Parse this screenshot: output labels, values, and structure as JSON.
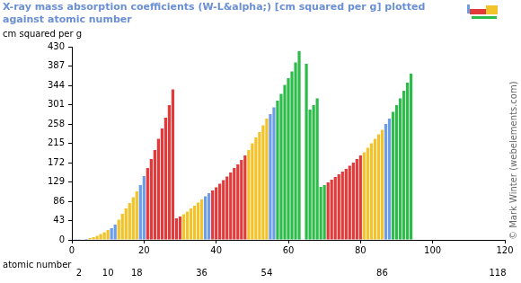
{
  "chart_data": {
    "type": "bar",
    "title": "X-ray mass absorption coefficients (W-L&alpha;) [cm squared per g] plotted against atomic number",
    "y_label": "cm squared per g",
    "x_label": "atomic number",
    "annotations": [
      "© Mark Winter (webelements.com)"
    ],
    "x": [
      1,
      2,
      3,
      4,
      5,
      6,
      7,
      8,
      9,
      10,
      11,
      12,
      13,
      14,
      15,
      16,
      17,
      18,
      19,
      20,
      21,
      22,
      23,
      24,
      25,
      26,
      27,
      28,
      29,
      30,
      31,
      32,
      33,
      34,
      35,
      36,
      37,
      38,
      39,
      40,
      41,
      42,
      43,
      44,
      45,
      46,
      47,
      48,
      49,
      50,
      51,
      52,
      53,
      54,
      55,
      56,
      57,
      58,
      59,
      60,
      61,
      62,
      63,
      64,
      65,
      66,
      67,
      68,
      69,
      70,
      71,
      72,
      73,
      74,
      75,
      76,
      77,
      78,
      79,
      80,
      81,
      82,
      83,
      84,
      85,
      86,
      87,
      88,
      89,
      90,
      91,
      92,
      93,
      94
    ],
    "values": [
      0.4,
      0.5,
      1,
      2,
      4,
      6,
      9,
      13,
      17,
      22,
      26,
      34,
      45,
      58,
      70,
      82,
      95,
      108,
      122,
      142,
      160,
      180,
      200,
      225,
      248,
      272,
      300,
      335,
      48,
      52,
      57,
      63,
      70,
      76,
      83,
      90,
      97,
      104,
      110,
      117,
      125,
      133,
      141,
      150,
      160,
      168,
      178,
      188,
      200,
      215,
      228,
      240,
      255,
      270,
      280,
      295,
      310,
      325,
      345,
      360,
      375,
      395,
      420,
      null,
      392,
      290,
      300,
      315,
      118,
      122,
      128,
      134,
      140,
      146,
      152,
      158,
      165,
      172,
      180,
      188,
      195,
      205,
      215,
      225,
      235,
      245,
      258,
      270,
      285,
      300,
      315,
      332,
      350,
      370
    ],
    "colors": [
      "#6b9de8",
      "#6b9de8",
      "#6b9de8",
      "#6b9de8",
      "#f2c32a",
      "#f2c32a",
      "#f2c32a",
      "#f2c32a",
      "#f2c32a",
      "#f2c32a",
      "#6b9de8",
      "#6b9de8",
      "#f2c32a",
      "#f2c32a",
      "#f2c32a",
      "#f2c32a",
      "#f2c32a",
      "#f2c32a",
      "#6b9de8",
      "#6b9de8",
      "#e23a3a",
      "#e23a3a",
      "#e23a3a",
      "#e23a3a",
      "#e23a3a",
      "#e23a3a",
      "#e23a3a",
      "#e23a3a",
      "#e23a3a",
      "#e23a3a",
      "#f2c32a",
      "#f2c32a",
      "#f2c32a",
      "#f2c32a",
      "#f2c32a",
      "#f2c32a",
      "#6b9de8",
      "#6b9de8",
      "#e23a3a",
      "#e23a3a",
      "#e23a3a",
      "#e23a3a",
      "#e23a3a",
      "#e23a3a",
      "#e23a3a",
      "#e23a3a",
      "#e23a3a",
      "#e23a3a",
      "#f2c32a",
      "#f2c32a",
      "#f2c32a",
      "#f2c32a",
      "#f2c32a",
      "#f2c32a",
      "#6b9de8",
      "#6b9de8",
      "#2dbb4a",
      "#2dbb4a",
      "#2dbb4a",
      "#2dbb4a",
      "#2dbb4a",
      "#2dbb4a",
      "#2dbb4a",
      "#2dbb4a",
      "#2dbb4a",
      "#2dbb4a",
      "#2dbb4a",
      "#2dbb4a",
      "#2dbb4a",
      "#2dbb4a",
      "#e23a3a",
      "#e23a3a",
      "#e23a3a",
      "#e23a3a",
      "#e23a3a",
      "#e23a3a",
      "#e23a3a",
      "#e23a3a",
      "#e23a3a",
      "#e23a3a",
      "#f2c32a",
      "#f2c32a",
      "#f2c32a",
      "#f2c32a",
      "#f2c32a",
      "#f2c32a",
      "#6b9de8",
      "#6b9de8",
      "#2dbb4a",
      "#2dbb4a",
      "#2dbb4a",
      "#2dbb4a",
      "#2dbb4a",
      "#2dbb4a"
    ],
    "xlim": [
      0,
      120
    ],
    "xticks": [
      0,
      20,
      40,
      60,
      80,
      100,
      120
    ],
    "x2lim": [
      0,
      120
    ],
    "x2ticks": [
      2,
      10,
      18,
      36,
      54,
      86,
      118
    ],
    "ylim": [
      0,
      430
    ],
    "yticks": [
      0,
      43,
      86,
      129,
      172,
      215,
      258,
      301,
      344,
      387,
      430
    ],
    "grid": false
  }
}
